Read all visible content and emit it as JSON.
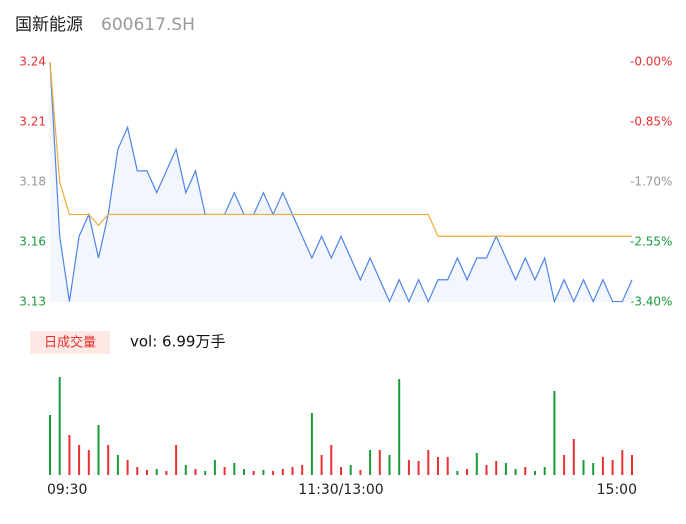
{
  "header": {
    "name": "国新能源",
    "code": "600617.SH"
  },
  "volume_panel": {
    "button": "日成交量",
    "label": "vol: 6.99万手"
  },
  "chart_data": [
    {
      "type": "line",
      "x": [
        0,
        4,
        8,
        12,
        16,
        20,
        24,
        28,
        32,
        36,
        40,
        44,
        48,
        52,
        56,
        60,
        64,
        68,
        72,
        76,
        80,
        84,
        88,
        92,
        96,
        100,
        104,
        108,
        112,
        116,
        120,
        124,
        128,
        132,
        136,
        140,
        144,
        148,
        152,
        156,
        160,
        164,
        168,
        172,
        176,
        180,
        184,
        188,
        192,
        196,
        200,
        204,
        208,
        212,
        216,
        220,
        224,
        228,
        232,
        236,
        240
      ],
      "xlim": [
        0,
        240
      ],
      "ylim": [
        3.1298,
        3.24
      ],
      "yticks": [
        3.24,
        {
          "value": 3.2125,
          "label": "3.21"
        },
        {
          "value": 3.1849,
          "label": "3.18"
        },
        {
          "value": 3.1574,
          "label": "3.16"
        },
        {
          "value": 3.1298,
          "label": "3.13"
        }
      ],
      "ytick_colors": [
        "#e8312f",
        "#e8312f",
        "#999999",
        "#1a9b3a",
        "#1a9b3a"
      ],
      "y2lim": [
        -3.4,
        0
      ],
      "y2ticks": [
        {
          "value": 0,
          "label": "-0.00%"
        },
        {
          "value": -0.85,
          "label": "-0.85%"
        },
        {
          "value": -1.7,
          "label": "-1.70%"
        },
        {
          "value": -2.55,
          "label": "-2.55%"
        },
        {
          "value": -3.4,
          "label": "-3.40%"
        }
      ],
      "series": [
        {
          "color": "#4f84e6",
          "values": [
            3.24,
            3.16,
            3.13,
            3.16,
            3.17,
            3.15,
            3.17,
            3.2,
            3.21,
            3.19,
            3.19,
            3.18,
            3.19,
            3.2,
            3.18,
            3.19,
            3.17,
            3.17,
            3.17,
            3.18,
            3.17,
            3.17,
            3.18,
            3.17,
            3.18,
            3.17,
            3.16,
            3.15,
            3.16,
            3.15,
            3.16,
            3.15,
            3.14,
            3.15,
            3.14,
            3.13,
            3.14,
            3.13,
            3.14,
            3.13,
            3.14,
            3.14,
            3.15,
            3.14,
            3.15,
            3.15,
            3.16,
            3.15,
            3.14,
            3.15,
            3.14,
            3.15,
            3.13,
            3.14,
            3.13,
            3.14,
            3.13,
            3.14,
            3.13,
            3.13,
            3.14
          ]
        },
        {
          "color": "#f0ad3a",
          "values": [
            3.24,
            3.185,
            3.17,
            3.17,
            3.17,
            3.165,
            3.17,
            3.17,
            3.17,
            3.17,
            3.17,
            3.17,
            3.17,
            3.17,
            3.17,
            3.17,
            3.17,
            3.17,
            3.17,
            3.17,
            3.17,
            3.17,
            3.17,
            3.17,
            3.17,
            3.17,
            3.17,
            3.17,
            3.17,
            3.17,
            3.17,
            3.17,
            3.17,
            3.17,
            3.17,
            3.17,
            3.17,
            3.17,
            3.17,
            3.17,
            3.16,
            3.16,
            3.16,
            3.16,
            3.16,
            3.16,
            3.16,
            3.16,
            3.16,
            3.16,
            3.16,
            3.16,
            3.16,
            3.16,
            3.16,
            3.16,
            3.16,
            3.16,
            3.16,
            3.16,
            3.16
          ]
        }
      ]
    },
    {
      "type": "bar",
      "x": [
        0,
        4,
        8,
        12,
        16,
        20,
        24,
        28,
        32,
        36,
        40,
        44,
        48,
        52,
        56,
        60,
        64,
        68,
        72,
        76,
        80,
        84,
        88,
        92,
        96,
        100,
        104,
        108,
        112,
        116,
        120,
        124,
        128,
        132,
        136,
        140,
        144,
        148,
        152,
        156,
        160,
        164,
        168,
        172,
        176,
        180,
        184,
        188,
        192,
        196,
        200,
        204,
        208,
        212,
        216,
        220,
        224,
        228,
        232,
        236,
        240
      ],
      "xlim": [
        0,
        240
      ],
      "xticks": [
        {
          "value": 0,
          "label": "09:30"
        },
        {
          "value": 120,
          "label": "11:30/13:00"
        },
        {
          "value": 240,
          "label": "15:00"
        }
      ],
      "values": [
        60,
        98,
        40,
        30,
        25,
        50,
        30,
        20,
        15,
        8,
        5,
        6,
        4,
        30,
        10,
        6,
        4,
        15,
        8,
        12,
        6,
        4,
        5,
        4,
        6,
        8,
        10,
        62,
        20,
        30,
        8,
        10,
        5,
        25,
        25,
        20,
        96,
        15,
        14,
        25,
        18,
        18,
        4,
        6,
        22,
        10,
        14,
        12,
        6,
        8,
        4,
        8,
        84,
        20,
        36,
        15,
        12,
        18,
        15,
        25,
        20
      ],
      "colors": [
        "#1a9b3a",
        "#1a9b3a",
        "#e8312f",
        "#e8312f",
        "#e8312f",
        "#1a9b3a",
        "#e8312f",
        "#1a9b3a",
        "#e8312f",
        "#e8312f",
        "#e8312f",
        "#1a9b3a",
        "#e8312f",
        "#e8312f",
        "#1a9b3a",
        "#e8312f",
        "#1a9b3a",
        "#1a9b3a",
        "#e8312f",
        "#1a9b3a",
        "#1a9b3a",
        "#e8312f",
        "#1a9b3a",
        "#e8312f",
        "#e8312f",
        "#e8312f",
        "#e8312f",
        "#1a9b3a",
        "#e8312f",
        "#e8312f",
        "#e8312f",
        "#1a9b3a",
        "#e8312f",
        "#1a9b3a",
        "#e8312f",
        "#1a9b3a",
        "#1a9b3a",
        "#e8312f",
        "#e8312f",
        "#e8312f",
        "#e8312f",
        "#e8312f",
        "#1a9b3a",
        "#e8312f",
        "#1a9b3a",
        "#e8312f",
        "#e8312f",
        "#1a9b3a",
        "#1a9b3a",
        "#e8312f",
        "#1a9b3a",
        "#1a9b3a",
        "#1a9b3a",
        "#e8312f",
        "#e8312f",
        "#1a9b3a",
        "#1a9b3a",
        "#e8312f",
        "#e8312f",
        "#e8312f",
        "#e8312f"
      ]
    }
  ]
}
